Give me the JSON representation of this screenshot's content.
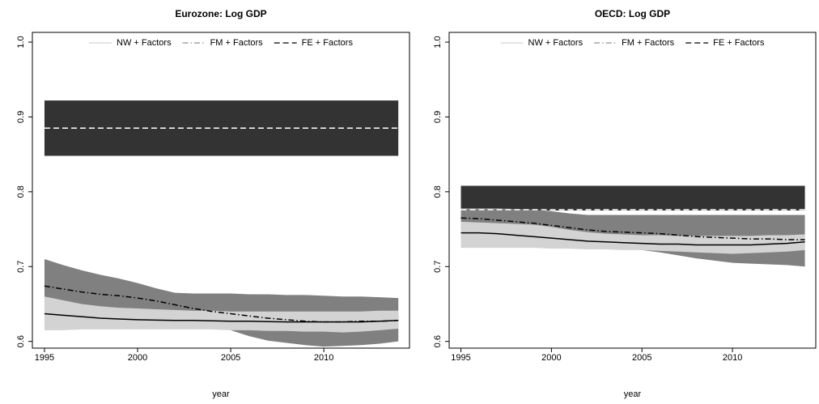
{
  "chart_data": [
    {
      "type": "band-line",
      "title": "Eurozone: Log GDP",
      "xlabel": "year",
      "x": [
        1995,
        1996,
        1997,
        1998,
        1999,
        2000,
        2001,
        2002,
        2003,
        2004,
        2005,
        2006,
        2007,
        2008,
        2009,
        2010,
        2011,
        2012,
        2013,
        2014
      ],
      "xlim": [
        1994.35,
        2014.6
      ],
      "xticks": [
        1995,
        2000,
        2005,
        2010
      ],
      "ylim": [
        0.591,
        1.013
      ],
      "yticks": [
        0.6,
        0.7,
        0.8,
        0.9,
        {
          "value": 1,
          "label": "1.0"
        }
      ],
      "legend": "top",
      "series": [
        {
          "name": "NW + Factors",
          "color": "#000000",
          "band_color": "#d3d3d3",
          "legend_color": "#d3d3d3",
          "line_style": "solid",
          "values": [
            0.637,
            0.635,
            0.633,
            0.631,
            0.63,
            0.629,
            0.6285,
            0.628,
            0.628,
            0.6275,
            0.627,
            0.627,
            0.6265,
            0.626,
            0.626,
            0.626,
            0.626,
            0.626,
            0.627,
            0.628
          ],
          "upper": [
            0.66,
            0.655,
            0.65,
            0.647,
            0.645,
            0.644,
            0.643,
            0.642,
            0.641,
            0.641,
            0.64,
            0.64,
            0.64,
            0.64,
            0.64,
            0.64,
            0.64,
            0.64,
            0.641,
            0.641
          ],
          "lower": [
            0.615,
            0.615,
            0.616,
            0.616,
            0.616,
            0.616,
            0.616,
            0.616,
            0.616,
            0.616,
            0.615,
            0.615,
            0.614,
            0.614,
            0.613,
            0.613,
            0.612,
            0.613,
            0.615,
            0.617
          ]
        },
        {
          "name": "FM + Factors",
          "color": "#000000",
          "band_color": "#808080",
          "legend_color": "#909090",
          "line_style": "dashdot",
          "values": [
            0.674,
            0.67,
            0.666,
            0.663,
            0.661,
            0.658,
            0.654,
            0.649,
            0.644,
            0.64,
            0.637,
            0.634,
            0.631,
            0.629,
            0.627,
            0.626,
            0.626,
            0.627,
            0.627,
            0.628
          ],
          "upper": [
            0.71,
            0.702,
            0.695,
            0.689,
            0.684,
            0.678,
            0.671,
            0.665,
            0.664,
            0.664,
            0.664,
            0.663,
            0.663,
            0.662,
            0.662,
            0.661,
            0.66,
            0.66,
            0.659,
            0.658
          ],
          "lower": [
            0.64,
            0.638,
            0.637,
            0.636,
            0.636,
            0.635,
            0.634,
            0.632,
            0.628,
            0.622,
            0.615,
            0.607,
            0.601,
            0.598,
            0.595,
            0.593,
            0.594,
            0.595,
            0.597,
            0.6
          ]
        },
        {
          "name": "FE + Factors",
          "color": "#ffffff",
          "band_color": "#333333",
          "legend_color": "#000000",
          "line_style": "dashed",
          "values": [
            0.885,
            0.885,
            0.885,
            0.885,
            0.885,
            0.885,
            0.885,
            0.885,
            0.885,
            0.885,
            0.885,
            0.885,
            0.885,
            0.885,
            0.885,
            0.885,
            0.885,
            0.885,
            0.885,
            0.885
          ],
          "upper": [
            0.922,
            0.922,
            0.922,
            0.922,
            0.922,
            0.922,
            0.922,
            0.922,
            0.922,
            0.922,
            0.922,
            0.922,
            0.922,
            0.922,
            0.922,
            0.922,
            0.922,
            0.922,
            0.922,
            0.922
          ],
          "lower": [
            0.848,
            0.848,
            0.848,
            0.848,
            0.848,
            0.848,
            0.848,
            0.848,
            0.848,
            0.848,
            0.848,
            0.848,
            0.848,
            0.848,
            0.848,
            0.848,
            0.848,
            0.848,
            0.848,
            0.848
          ]
        }
      ]
    },
    {
      "type": "band-line",
      "title": "OECD: Log GDP",
      "xlabel": "year",
      "x": [
        1995,
        1996,
        1997,
        1998,
        1999,
        2000,
        2001,
        2002,
        2003,
        2004,
        2005,
        2006,
        2007,
        2008,
        2009,
        2010,
        2011,
        2012,
        2013,
        2014
      ],
      "xlim": [
        1994.35,
        2014.6
      ],
      "xticks": [
        1995,
        2000,
        2005,
        2010
      ],
      "ylim": [
        0.591,
        1.013
      ],
      "yticks": [
        0.6,
        0.7,
        0.8,
        0.9,
        {
          "value": 1,
          "label": "1.0"
        }
      ],
      "legend": "top",
      "series": [
        {
          "name": "NW + Factors",
          "color": "#000000",
          "band_color": "#d3d3d3",
          "legend_color": "#d3d3d3",
          "line_style": "solid",
          "values": [
            0.745,
            0.745,
            0.744,
            0.742,
            0.74,
            0.738,
            0.736,
            0.734,
            0.733,
            0.732,
            0.731,
            0.73,
            0.73,
            0.729,
            0.729,
            0.729,
            0.729,
            0.73,
            0.731,
            0.733
          ],
          "upper": [
            0.76,
            0.759,
            0.758,
            0.757,
            0.756,
            0.753,
            0.749,
            0.746,
            0.744,
            0.743,
            0.742,
            0.742,
            0.741,
            0.741,
            0.741,
            0.741,
            0.741,
            0.742,
            0.742,
            0.743
          ],
          "lower": [
            0.725,
            0.725,
            0.725,
            0.725,
            0.725,
            0.724,
            0.724,
            0.723,
            0.723,
            0.722,
            0.722,
            0.721,
            0.72,
            0.719,
            0.718,
            0.717,
            0.718,
            0.719,
            0.72,
            0.722
          ]
        },
        {
          "name": "FM + Factors",
          "color": "#000000",
          "band_color": "#808080",
          "legend_color": "#909090",
          "line_style": "dashdot",
          "values": [
            0.765,
            0.764,
            0.762,
            0.76,
            0.758,
            0.755,
            0.752,
            0.749,
            0.747,
            0.746,
            0.745,
            0.744,
            0.742,
            0.74,
            0.739,
            0.738,
            0.737,
            0.737,
            0.736,
            0.736
          ],
          "upper": [
            0.778,
            0.778,
            0.778,
            0.777,
            0.776,
            0.774,
            0.771,
            0.769,
            0.769,
            0.769,
            0.769,
            0.769,
            0.769,
            0.769,
            0.769,
            0.769,
            0.769,
            0.769,
            0.769,
            0.769
          ],
          "lower": [
            0.748,
            0.747,
            0.745,
            0.743,
            0.741,
            0.738,
            0.734,
            0.73,
            0.727,
            0.725,
            0.722,
            0.719,
            0.715,
            0.711,
            0.708,
            0.705,
            0.704,
            0.703,
            0.702,
            0.7
          ]
        },
        {
          "name": "FE + Factors",
          "color": "#ffffff",
          "band_color": "#333333",
          "legend_color": "#000000",
          "line_style": "dashed",
          "values": [
            0.776,
            0.776,
            0.776,
            0.776,
            0.776,
            0.776,
            0.776,
            0.776,
            0.776,
            0.776,
            0.776,
            0.776,
            0.776,
            0.776,
            0.776,
            0.776,
            0.776,
            0.776,
            0.776,
            0.776
          ],
          "upper": [
            0.808,
            0.808,
            0.808,
            0.808,
            0.808,
            0.808,
            0.808,
            0.808,
            0.808,
            0.808,
            0.808,
            0.808,
            0.808,
            0.808,
            0.808,
            0.808,
            0.808,
            0.808,
            0.808,
            0.808
          ],
          "lower": [
            0.775,
            0.775,
            0.775,
            0.775,
            0.775,
            0.775,
            0.775,
            0.775,
            0.775,
            0.775,
            0.775,
            0.775,
            0.775,
            0.775,
            0.775,
            0.775,
            0.775,
            0.775,
            0.775,
            0.775
          ]
        }
      ]
    }
  ]
}
